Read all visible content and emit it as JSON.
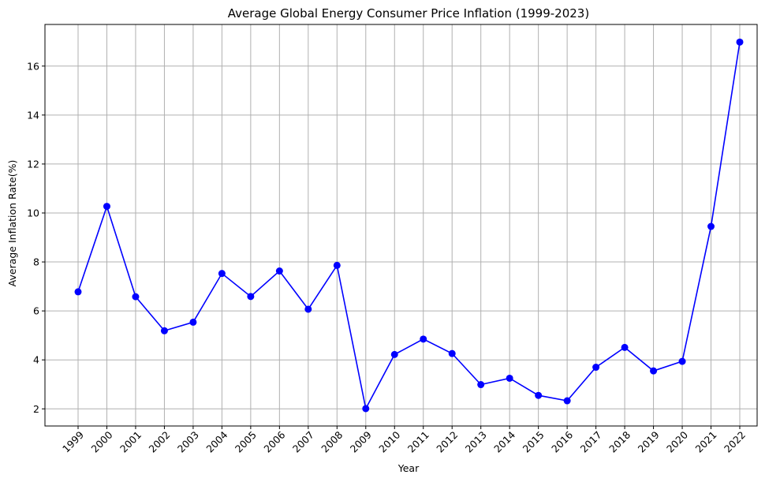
{
  "chart_data": {
    "type": "line",
    "title": "Average Global Energy Consumer Price Inflation (1999-2023)",
    "xlabel": "Year",
    "ylabel": "Average Inflation Rate(%)",
    "x": [
      "1999",
      "2000",
      "2001",
      "2002",
      "2003",
      "2004",
      "2005",
      "2006",
      "2007",
      "2008",
      "2009",
      "2010",
      "2011",
      "2012",
      "2013",
      "2014",
      "2015",
      "2016",
      "2017",
      "2018",
      "2019",
      "2020",
      "2021",
      "2022"
    ],
    "series": [
      {
        "values": [
          6.78,
          10.27,
          6.58,
          5.19,
          5.54,
          7.53,
          6.59,
          7.63,
          6.07,
          7.86,
          2.01,
          4.22,
          4.85,
          4.26,
          2.99,
          3.25,
          2.55,
          2.33,
          3.7,
          4.51,
          3.55,
          3.94,
          9.45,
          16.98
        ],
        "color": "#0000ff",
        "marker": "circle"
      }
    ],
    "ylim": [
      1.3,
      17.7
    ],
    "yticks": [
      2,
      4,
      6,
      8,
      10,
      12,
      14,
      16
    ],
    "grid": true,
    "legend": "none"
  }
}
